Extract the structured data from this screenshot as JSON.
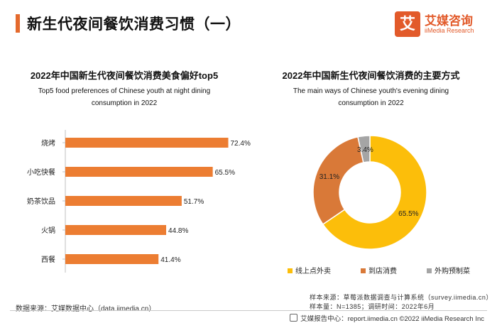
{
  "page": {
    "title": "新生代夜间餐饮消费习惯（一）"
  },
  "logo": {
    "mark": "艾",
    "name": "艾媒咨询",
    "sub": "iiMedia Research"
  },
  "chart_data": [
    {
      "type": "bar",
      "orientation": "horizontal",
      "title": "2022年中国新生代夜间餐饮消费美食偏好top5",
      "subtitle_lines": [
        "Top5 food preferences of Chinese youth at night dining",
        "consumption in 2022"
      ],
      "categories": [
        "烧烤",
        "小吃快餐",
        "奶茶饮品",
        "火锅",
        "西餐"
      ],
      "values": [
        72.4,
        65.5,
        51.7,
        44.8,
        41.4
      ],
      "value_suffix": "%",
      "xlim": [
        0,
        100
      ],
      "color": "#ec7d32"
    },
    {
      "type": "pie",
      "variant": "donut",
      "title": "2022年中国新生代夜间餐饮消费的主要方式",
      "subtitle_lines": [
        "The main ways of Chinese youth's evening dining",
        "consumption in 2022"
      ],
      "labels": [
        "线上点外卖",
        "到店消费",
        "外购预制菜"
      ],
      "values": [
        65.5,
        31.1,
        3.4
      ],
      "colors": [
        "#fcbe0a",
        "#d97938",
        "#a5a5a5"
      ],
      "legend": "bottom"
    }
  ],
  "footer": {
    "source": "数据来源：艾媒数据中心（data.iimedia.cn）",
    "note_sample_source": "样本来源：草莓派数据调查与计算系统（survey.iimedia.cn）",
    "note_sample_size": "样本量：N=1385；调研时间：2022年6月",
    "report": "艾媒报告中心：report.iimedia.cn  ©2022  iiMedia Research  Inc"
  }
}
